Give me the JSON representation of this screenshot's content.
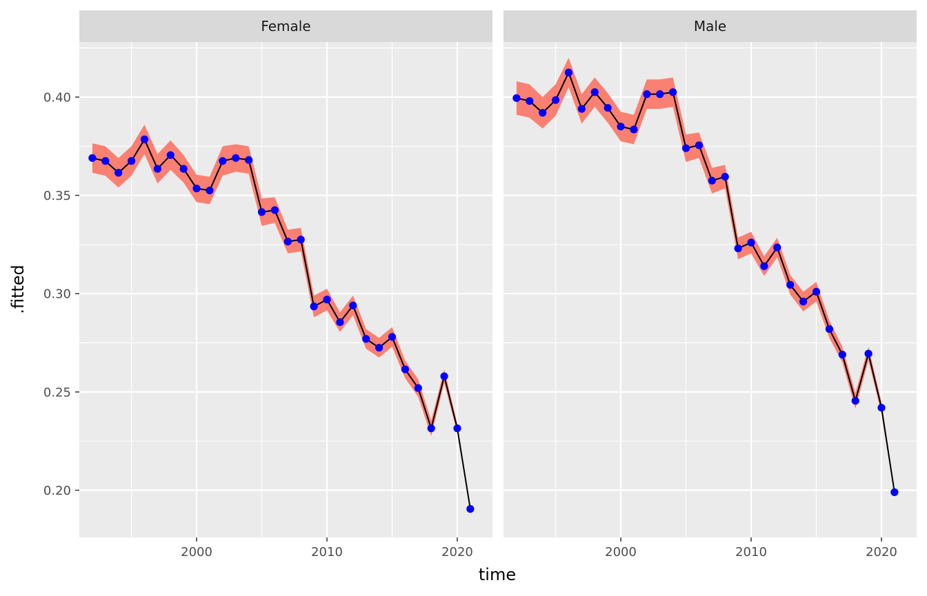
{
  "chart_data": {
    "type": "line",
    "xlabel": "time",
    "ylabel": ".fitted",
    "x_ticks": [
      2000,
      2010,
      2020
    ],
    "y_ticks": [
      0.2,
      0.25,
      0.3,
      0.35,
      0.4
    ],
    "xlim": [
      1991.0,
      2022.7
    ],
    "ylim": [
      0.176,
      0.428
    ],
    "grid": true,
    "legend": "none",
    "colors": {
      "panel_bg": "#ebebeb",
      "strip_bg": "#d9d9d9",
      "grid": "#ffffff",
      "ribbon": "#fa8072",
      "line": "#000000",
      "points": "#0000ff"
    },
    "x": [
      1992,
      1993,
      1994,
      1995,
      1996,
      1997,
      1998,
      1999,
      2000,
      2001,
      2002,
      2003,
      2004,
      2005,
      2006,
      2007,
      2008,
      2009,
      2010,
      2011,
      2012,
      2013,
      2014,
      2015,
      2016,
      2017,
      2018,
      2019,
      2020,
      2021
    ],
    "facets": [
      {
        "label": "Female",
        "values": [
          0.369,
          0.3675,
          0.3615,
          0.3675,
          0.3785,
          0.3635,
          0.3705,
          0.3635,
          0.3535,
          0.3525,
          0.3675,
          0.369,
          0.368,
          0.3415,
          0.3425,
          0.3265,
          0.3275,
          0.2935,
          0.297,
          0.2855,
          0.294,
          0.277,
          0.2725,
          0.278,
          0.2615,
          0.252,
          0.2315,
          0.258,
          0.2315,
          0.1905
        ],
        "band": [
          0.0075,
          0.0075,
          0.0075,
          0.0075,
          0.0075,
          0.0075,
          0.0075,
          0.007,
          0.007,
          0.007,
          0.0075,
          0.007,
          0.007,
          0.007,
          0.0065,
          0.006,
          0.006,
          0.0055,
          0.0055,
          0.005,
          0.005,
          0.005,
          0.005,
          0.005,
          0.0045,
          0.0045,
          0.004,
          0.0035,
          0.0025,
          0.001
        ]
      },
      {
        "label": "Male",
        "values": [
          0.3995,
          0.398,
          0.392,
          0.3985,
          0.4125,
          0.394,
          0.4025,
          0.3945,
          0.385,
          0.3835,
          0.4015,
          0.4015,
          0.4025,
          0.374,
          0.3755,
          0.3575,
          0.3595,
          0.323,
          0.326,
          0.314,
          0.3235,
          0.3045,
          0.296,
          0.301,
          0.282,
          0.269,
          0.2455,
          0.2695,
          0.242,
          0.199
        ],
        "band": [
          0.0085,
          0.0085,
          0.008,
          0.008,
          0.0075,
          0.0075,
          0.0075,
          0.0075,
          0.0075,
          0.0075,
          0.0075,
          0.0075,
          0.0075,
          0.007,
          0.0065,
          0.0065,
          0.006,
          0.0055,
          0.0055,
          0.005,
          0.005,
          0.005,
          0.005,
          0.005,
          0.0045,
          0.004,
          0.004,
          0.0035,
          0.003,
          0.0015
        ]
      }
    ]
  }
}
